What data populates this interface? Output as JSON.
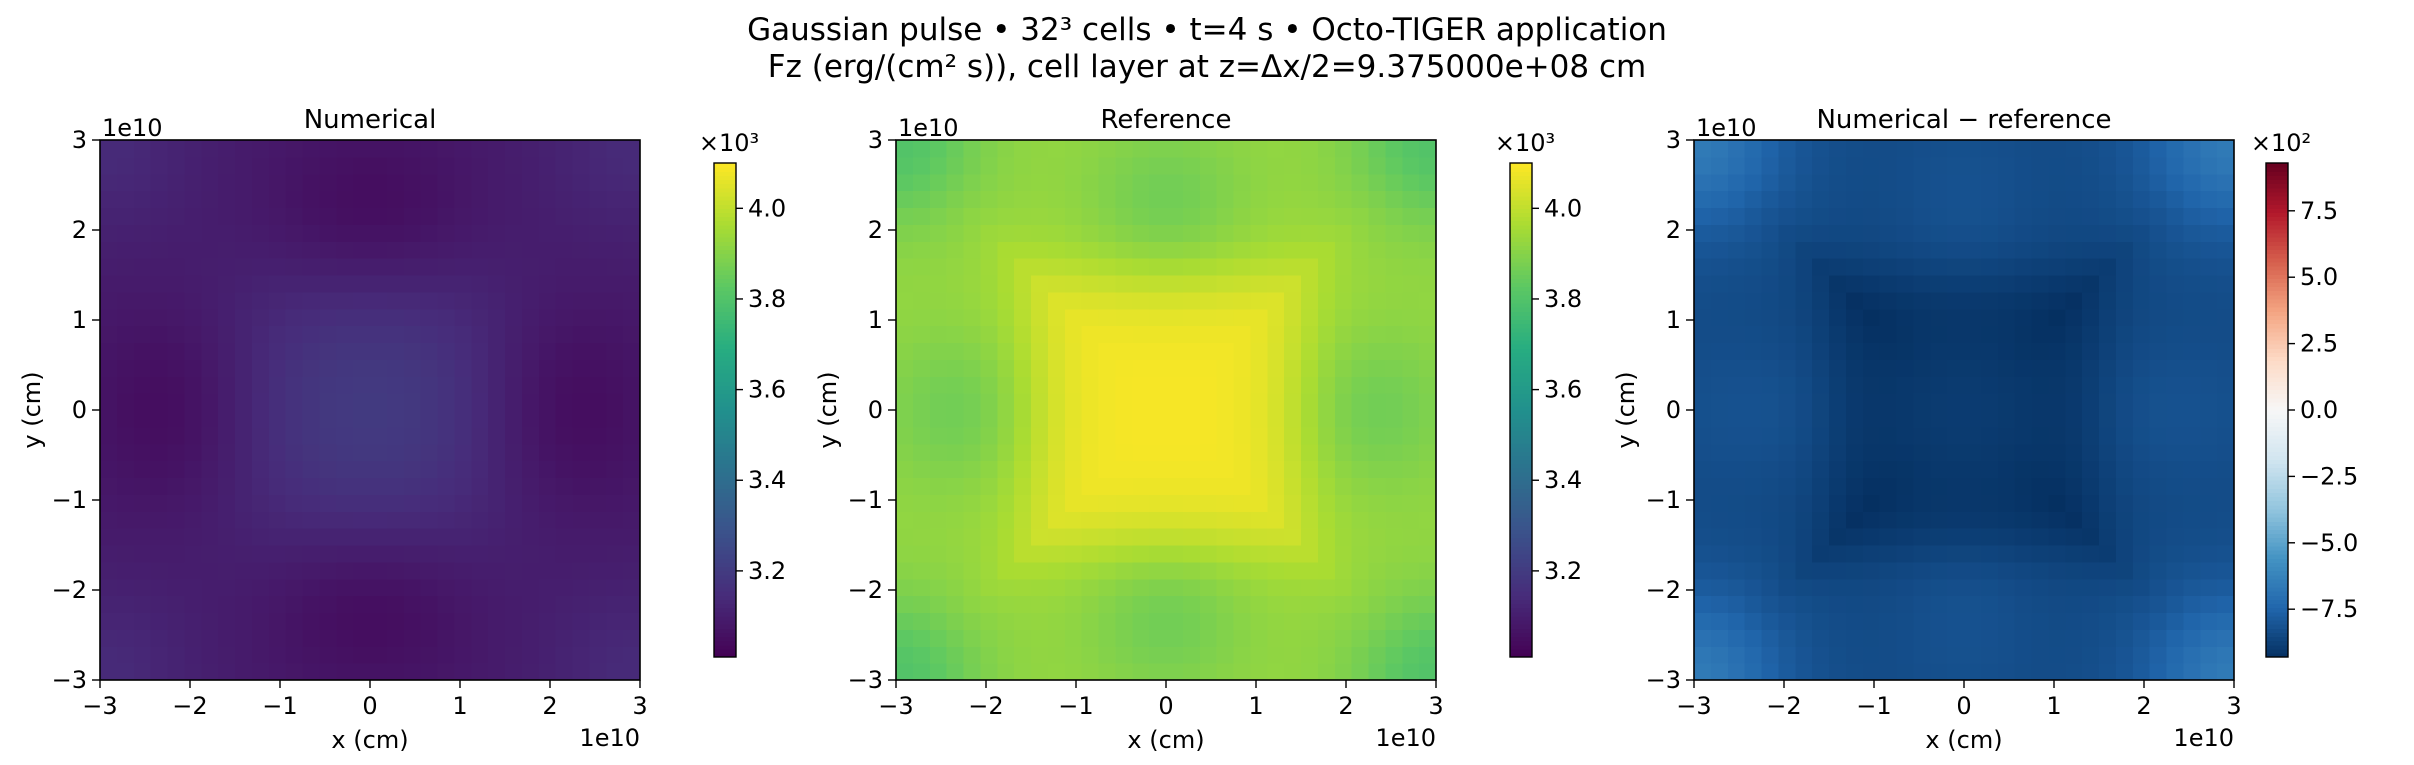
{
  "figure": {
    "title_line1": "Gaussian pulse • 32³ cells • t=4 s • Octo-TIGER application",
    "title_line2": "Fz (erg/(cm² s)), cell layer at z=Δx/2=9.375000e+08 cm"
  },
  "chart_data": [
    {
      "type": "heatmap",
      "title": "Numerical",
      "xlabel": "x (cm)",
      "ylabel": "y (cm)",
      "x_offset_label": "1e10",
      "y_offset_label": "1e10",
      "xlim": [
        -3,
        3
      ],
      "ylim": [
        -3,
        3
      ],
      "xticks": [
        -3,
        -2,
        -1,
        0,
        1,
        2,
        3
      ],
      "yticks": [
        -3,
        -2,
        -1,
        0,
        1,
        2,
        3
      ],
      "xtick_labels": [
        "−3",
        "−2",
        "−1",
        "0",
        "1",
        "2",
        "3"
      ],
      "ytick_labels": [
        "−3",
        "−2",
        "−1",
        "0",
        "1",
        "2",
        "3"
      ],
      "grid": 32,
      "colormap": "viridis",
      "field": "numerical",
      "colorbar": {
        "multiplier": "×10³",
        "range": [
          3.01,
          4.1
        ],
        "ticks": [
          3.2,
          3.4,
          3.6,
          3.8,
          4.0
        ],
        "tick_labels": [
          "3.2",
          "3.4",
          "3.6",
          "3.8",
          "4.0"
        ]
      }
    },
    {
      "type": "heatmap",
      "title": "Reference",
      "xlabel": "x (cm)",
      "ylabel": "y (cm)",
      "x_offset_label": "1e10",
      "y_offset_label": "1e10",
      "xlim": [
        -3,
        3
      ],
      "ylim": [
        -3,
        3
      ],
      "xticks": [
        -3,
        -2,
        -1,
        0,
        1,
        2,
        3
      ],
      "yticks": [
        -3,
        -2,
        -1,
        0,
        1,
        2,
        3
      ],
      "xtick_labels": [
        "−3",
        "−2",
        "−1",
        "0",
        "1",
        "2",
        "3"
      ],
      "ytick_labels": [
        "−3",
        "−2",
        "−1",
        "0",
        "1",
        "2",
        "3"
      ],
      "grid": 32,
      "colormap": "viridis",
      "field": "reference",
      "colorbar": {
        "multiplier": "×10³",
        "range": [
          3.01,
          4.1
        ],
        "ticks": [
          3.2,
          3.4,
          3.6,
          3.8,
          4.0
        ],
        "tick_labels": [
          "3.2",
          "3.4",
          "3.6",
          "3.8",
          "4.0"
        ]
      }
    },
    {
      "type": "heatmap",
      "title": "Numerical − reference",
      "xlabel": "x (cm)",
      "ylabel": "y (cm)",
      "x_offset_label": "1e10",
      "y_offset_label": "1e10",
      "xlim": [
        -3,
        3
      ],
      "ylim": [
        -3,
        3
      ],
      "xticks": [
        -3,
        -2,
        -1,
        0,
        1,
        2,
        3
      ],
      "yticks": [
        -3,
        -2,
        -1,
        0,
        1,
        2,
        3
      ],
      "xtick_labels": [
        "−3",
        "−2",
        "−1",
        "0",
        "1",
        "2",
        "3"
      ],
      "ytick_labels": [
        "−3",
        "−2",
        "−1",
        "0",
        "1",
        "2",
        "3"
      ],
      "grid": 32,
      "colormap": "RdBu_r",
      "field": "difference",
      "colorbar": {
        "multiplier": "×10²",
        "range": [
          -9.3,
          9.3
        ],
        "ticks": [
          -7.5,
          -5.0,
          -2.5,
          0.0,
          2.5,
          5.0,
          7.5
        ],
        "tick_labels": [
          "−7.5",
          "−5.0",
          "−2.5",
          "0.0",
          "2.5",
          "5.0",
          "7.5"
        ]
      }
    }
  ]
}
